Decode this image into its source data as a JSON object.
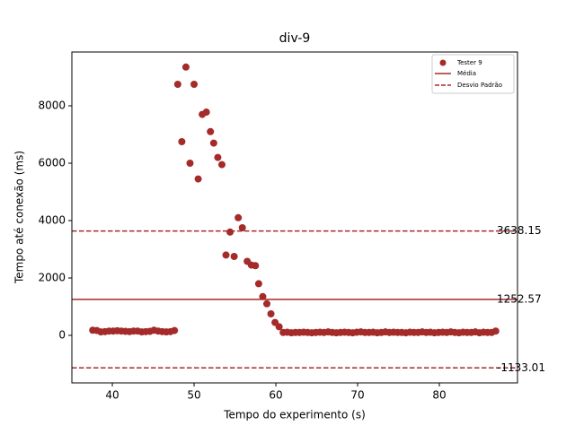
{
  "chart_data": {
    "type": "scatter",
    "title": "div-9",
    "x_label": "Tempo do experimento (s)",
    "y_label": "Tempo até conexão (ms)",
    "xlim": [
      35.05,
      89.56
    ],
    "ylim": [
      -1656,
      9875
    ],
    "xticks": [
      40,
      50,
      60,
      70,
      80
    ],
    "yticks": [
      0,
      2000,
      4000,
      6000,
      8000
    ],
    "legend_position": "upper right",
    "series": [
      {
        "name": "Tester 9",
        "color": "#a52a2a",
        "x": [
          37.6,
          38.1,
          38.6,
          39.1,
          39.6,
          40.1,
          40.6,
          41.1,
          41.6,
          42.1,
          42.6,
          43.1,
          43.6,
          44.1,
          44.6,
          45.1,
          45.6,
          46.1,
          46.6,
          47.1,
          47.6,
          48.0,
          48.5,
          49.0,
          49.5,
          50.0,
          50.5,
          51.0,
          51.5,
          52.0,
          52.4,
          52.9,
          53.4,
          53.9,
          54.4,
          54.9,
          55.4,
          55.9,
          56.5,
          57.0,
          57.5,
          57.9,
          58.4,
          58.9,
          59.4,
          59.9,
          60.4,
          60.9,
          61.4,
          61.9,
          62.4,
          62.9,
          63.4,
          63.9,
          64.4,
          64.9,
          65.4,
          65.9,
          66.4,
          66.9,
          67.4,
          67.9,
          68.4,
          68.9,
          69.4,
          69.9,
          70.4,
          70.9,
          71.4,
          71.9,
          72.4,
          72.9,
          73.4,
          73.9,
          74.4,
          74.9,
          75.4,
          75.9,
          76.4,
          76.9,
          77.4,
          77.9,
          78.4,
          78.9,
          79.4,
          79.9,
          80.4,
          80.9,
          81.4,
          81.9,
          82.4,
          82.9,
          83.4,
          83.9,
          84.4,
          84.9,
          85.4,
          85.9,
          86.4,
          86.9
        ],
        "values": [
          180,
          170,
          120,
          130,
          150,
          150,
          160,
          150,
          140,
          130,
          150,
          150,
          120,
          130,
          140,
          180,
          150,
          130,
          120,
          130,
          170,
          8750,
          6750,
          9350,
          6000,
          8750,
          5450,
          7700,
          7780,
          7100,
          6700,
          6200,
          5950,
          2800,
          3600,
          2750,
          4100,
          3750,
          2580,
          2450,
          2430,
          1800,
          1350,
          1100,
          750,
          450,
          300,
          100,
          110,
          90,
          100,
          100,
          110,
          100,
          90,
          100,
          110,
          100,
          120,
          100,
          90,
          100,
          110,
          100,
          90,
          110,
          120,
          100,
          100,
          110,
          90,
          100,
          120,
          100,
          110,
          100,
          100,
          90,
          110,
          100,
          100,
          120,
          100,
          110,
          90,
          100,
          110,
          100,
          120,
          100,
          90,
          110,
          100,
          100,
          120,
          90,
          110,
          100,
          100,
          150
        ]
      }
    ],
    "mean": {
      "name": "Média",
      "value": 1252.57,
      "color": "#a52a2a"
    },
    "std_lines": {
      "name": "Desvio Padrão",
      "values": [
        3638.15,
        -1133.01
      ],
      "color": "#a52a2a"
    }
  }
}
